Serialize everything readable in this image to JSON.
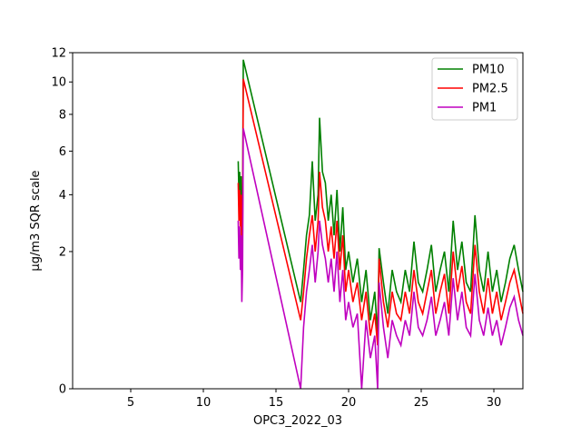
{
  "chart_data": {
    "type": "line",
    "title": "",
    "xlabel": "OPC3_2022_03",
    "ylabel": "µg/m3 SQR scale",
    "xlim": [
      1,
      32
    ],
    "ylim": [
      0,
      12
    ],
    "y_scale": "sqrt",
    "x_ticks": [
      5,
      10,
      15,
      20,
      25,
      30
    ],
    "y_ticks": [
      0,
      2,
      4,
      6,
      8,
      10,
      12
    ],
    "grid": false,
    "legend_position": "top-right",
    "series": [
      {
        "name": "PM10",
        "color": "#008000",
        "x": [
          12.4,
          12.45,
          12.5,
          12.55,
          12.6,
          12.65,
          12.7,
          12.75,
          16.7,
          16.9,
          17.1,
          17.3,
          17.5,
          17.7,
          17.9,
          18.0,
          18.2,
          18.4,
          18.6,
          18.8,
          19.0,
          19.2,
          19.4,
          19.6,
          19.8,
          20.0,
          20.3,
          20.6,
          20.9,
          21.2,
          21.5,
          21.8,
          22.0,
          22.1,
          22.4,
          22.7,
          23.0,
          23.3,
          23.6,
          23.9,
          24.2,
          24.5,
          24.8,
          25.1,
          25.4,
          25.7,
          26.0,
          26.3,
          26.6,
          26.9,
          27.2,
          27.5,
          27.8,
          28.1,
          28.4,
          28.7,
          29.0,
          29.3,
          29.6,
          29.9,
          30.2,
          30.5,
          30.8,
          31.1,
          31.4,
          31.7,
          32.0
        ],
        "y": [
          5.5,
          4.0,
          5.0,
          3.5,
          4.8,
          1.5,
          3.0,
          11.5,
          0.8,
          1.5,
          2.5,
          3.2,
          5.5,
          3.0,
          4.0,
          7.8,
          5.0,
          4.5,
          3.0,
          4.0,
          2.5,
          4.2,
          2.0,
          3.5,
          1.5,
          2.0,
          1.2,
          1.8,
          0.8,
          1.5,
          0.5,
          1.0,
          0.3,
          2.1,
          1.2,
          0.6,
          1.5,
          1.0,
          0.8,
          1.5,
          1.0,
          2.3,
          1.2,
          1.0,
          1.5,
          2.2,
          1.0,
          1.5,
          2.0,
          1.0,
          3.0,
          1.5,
          2.3,
          1.2,
          1.0,
          3.2,
          1.5,
          1.0,
          2.0,
          1.0,
          1.5,
          0.8,
          1.2,
          1.8,
          2.2,
          1.5,
          1.0
        ]
      },
      {
        "name": "PM2.5",
        "color": "#ff0000",
        "x": [
          12.4,
          12.45,
          12.5,
          12.55,
          12.6,
          12.65,
          12.7,
          12.75,
          16.7,
          16.9,
          17.1,
          17.3,
          17.5,
          17.7,
          17.9,
          18.0,
          18.2,
          18.4,
          18.6,
          18.8,
          19.0,
          19.2,
          19.4,
          19.6,
          19.8,
          20.0,
          20.3,
          20.6,
          20.9,
          21.2,
          21.5,
          21.8,
          22.0,
          22.1,
          22.4,
          22.7,
          23.0,
          23.3,
          23.6,
          23.9,
          24.2,
          24.5,
          24.8,
          25.1,
          25.4,
          25.7,
          26.0,
          26.3,
          26.6,
          26.9,
          27.2,
          27.5,
          27.8,
          28.1,
          28.4,
          28.7,
          29.0,
          29.3,
          29.6,
          29.9,
          30.2,
          30.5,
          30.8,
          31.1,
          31.4,
          31.7,
          32.0
        ],
        "y": [
          4.5,
          3.0,
          4.2,
          2.8,
          4.0,
          1.2,
          2.5,
          10.2,
          0.5,
          1.0,
          1.8,
          2.5,
          3.2,
          2.0,
          3.0,
          5.0,
          3.5,
          3.0,
          2.0,
          2.8,
          1.8,
          3.0,
          1.5,
          2.5,
          1.0,
          1.5,
          0.8,
          1.2,
          0.5,
          1.0,
          0.3,
          0.6,
          0.2,
          1.8,
          0.8,
          0.4,
          1.0,
          0.6,
          0.5,
          1.0,
          0.6,
          1.5,
          0.8,
          0.6,
          1.0,
          1.5,
          0.6,
          1.0,
          1.4,
          0.6,
          2.0,
          1.0,
          1.6,
          0.8,
          0.6,
          2.2,
          1.0,
          0.6,
          1.3,
          0.6,
          1.0,
          0.5,
          0.8,
          1.2,
          1.5,
          1.0,
          0.6
        ]
      },
      {
        "name": "PM1",
        "color": "#bf00bf",
        "x": [
          12.4,
          12.45,
          12.5,
          12.55,
          12.6,
          12.65,
          12.7,
          12.75,
          16.7,
          16.9,
          17.1,
          17.3,
          17.5,
          17.7,
          17.9,
          18.0,
          18.2,
          18.4,
          18.6,
          18.8,
          19.0,
          19.2,
          19.4,
          19.6,
          19.8,
          20.0,
          20.3,
          20.6,
          20.9,
          21.2,
          21.5,
          21.8,
          22.0,
          22.1,
          22.4,
          22.7,
          23.0,
          23.3,
          23.6,
          23.9,
          24.2,
          24.5,
          24.8,
          25.1,
          25.4,
          25.7,
          26.0,
          26.3,
          26.6,
          26.9,
          27.2,
          27.5,
          27.8,
          28.1,
          28.4,
          28.7,
          29.0,
          29.3,
          29.6,
          29.9,
          30.2,
          30.5,
          30.8,
          31.1,
          31.4,
          31.7,
          32.0
        ],
        "y": [
          3.0,
          1.8,
          2.8,
          1.5,
          2.5,
          0.8,
          1.5,
          7.2,
          0.0,
          0.4,
          1.0,
          1.5,
          2.2,
          1.2,
          2.0,
          3.0,
          2.2,
          1.8,
          1.2,
          1.8,
          1.0,
          2.0,
          0.8,
          1.5,
          0.5,
          0.8,
          0.4,
          0.6,
          0.0,
          0.5,
          0.1,
          0.3,
          0.0,
          1.2,
          0.4,
          0.1,
          0.5,
          0.3,
          0.2,
          0.5,
          0.3,
          1.0,
          0.4,
          0.3,
          0.5,
          0.9,
          0.3,
          0.5,
          0.8,
          0.3,
          1.3,
          0.5,
          1.0,
          0.4,
          0.3,
          1.4,
          0.5,
          0.3,
          0.7,
          0.3,
          0.5,
          0.2,
          0.4,
          0.7,
          0.9,
          0.5,
          0.3
        ]
      }
    ]
  }
}
